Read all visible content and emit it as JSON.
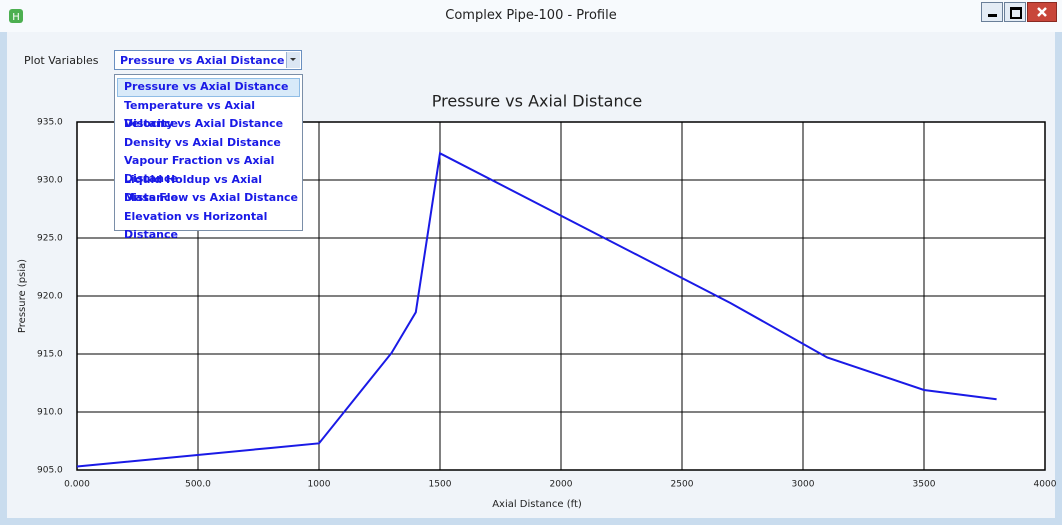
{
  "window": {
    "title": "Complex Pipe-100 - Profile"
  },
  "controls": {
    "plot_variables_label": "Plot Variables",
    "selected": "Pressure vs Axial Distance",
    "options": [
      "Pressure vs Axial Distance",
      "Temperature vs Axial Distance",
      "Velocity vs Axial Distance",
      "Density vs Axial Distance",
      "Vapour Fraction vs Axial Distance",
      "Liquid Holdup vs Axial Distance",
      "Mass Flow vs Axial Distance",
      "Elevation vs Horizontal Distance"
    ]
  },
  "chart_data": {
    "type": "line",
    "title": "Pressure vs Axial Distance",
    "x_label": "Axial Distance (ft)",
    "y_label": "Pressure (psia)",
    "x": [
      0,
      800,
      1000,
      1300,
      1400,
      1500,
      2700,
      3100,
      3500,
      3800
    ],
    "values": [
      905.3,
      906.9,
      907.3,
      915.1,
      918.6,
      932.3,
      919.4,
      914.7,
      911.9,
      911.1
    ],
    "color": "#1a1ae6",
    "grid": true,
    "xlim": [
      0,
      4000
    ],
    "xticks": [
      {
        "value": 0,
        "label": "0.000"
      },
      {
        "value": 500,
        "label": "500.0"
      },
      1000,
      1500,
      2000,
      2500,
      3000,
      3500,
      4000
    ],
    "ylim": [
      905,
      935
    ],
    "yticks": [
      {
        "value": 905,
        "label": "905.0"
      },
      {
        "value": 910,
        "label": "910.0"
      },
      {
        "value": 915,
        "label": "915.0"
      },
      {
        "value": 920,
        "label": "920.0"
      },
      {
        "value": 925,
        "label": "925.0"
      },
      {
        "value": 930,
        "label": "930.0"
      },
      {
        "value": 935,
        "label": "935.0"
      }
    ]
  }
}
